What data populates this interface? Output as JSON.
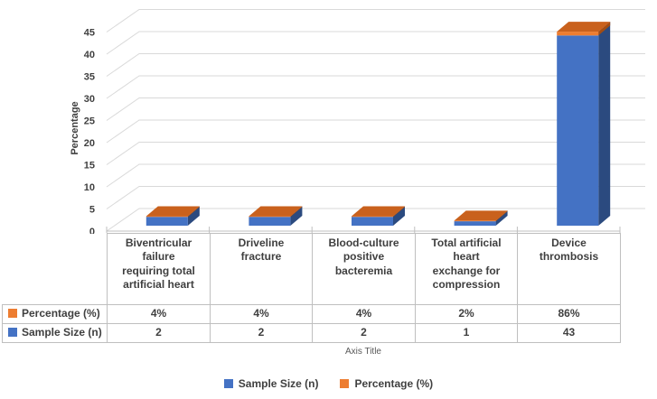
{
  "chart_data": {
    "type": "bar",
    "variant": "3d-stacked-column",
    "title": "",
    "ylabel": "Percentage",
    "xlabel": "Axis Title",
    "ylim": [
      0,
      45
    ],
    "ytick_step": 5,
    "grid": true,
    "legend_position": "bottom",
    "categories": [
      "Biventricular failure requiring total artificial heart",
      "Driveline fracture",
      "Blood-culture positive bacteremia",
      "Total artificial heart exchange for compression",
      "Device thrombosis"
    ],
    "categories_wrapped": [
      "Biventricular\nfailure\nrequiring total\nartificial heart",
      "Driveline\nfracture",
      "Blood-culture\npositive\nbacteremia",
      "Total artificial\nheart\nexchange for\ncompression",
      "Device\nthrombosis"
    ],
    "series": [
      {
        "name": "Sample Size (n)",
        "color": "#4472C4",
        "values": [
          2,
          2,
          2,
          1,
          43
        ],
        "display": [
          "2",
          "2",
          "2",
          "1",
          "43"
        ]
      },
      {
        "name": "Percentage (%)",
        "color": "#ED7D31",
        "values": [
          0.04,
          0.04,
          0.04,
          0.02,
          0.86
        ],
        "display": [
          "4%",
          "4%",
          "4%",
          "2%",
          "86%"
        ]
      }
    ],
    "table_row_order": [
      "Percentage (%)",
      "Sample Size (n)"
    ],
    "y_tick_labels": [
      "0",
      "5",
      "10",
      "15",
      "20",
      "25",
      "30",
      "35",
      "40",
      "45"
    ]
  },
  "legend": {
    "items": [
      {
        "label": "Sample Size (n)",
        "color": "#4472C4"
      },
      {
        "label": "Percentage (%)",
        "color": "#ED7D31"
      }
    ]
  },
  "colors": {
    "series_blue": "#4472C4",
    "series_blue_side": "#2B4A7F",
    "series_orange": "#ED7D31",
    "series_orange_top": "#C9611D",
    "series_orange_side": "#A34C12",
    "gridline": "#D9D9D9",
    "axis_line": "#BFBFBF",
    "axis_text": "#404040",
    "axis_title_text": "#595959",
    "table_border": "#BFBFBF",
    "table_text": "#3F3F3F"
  }
}
